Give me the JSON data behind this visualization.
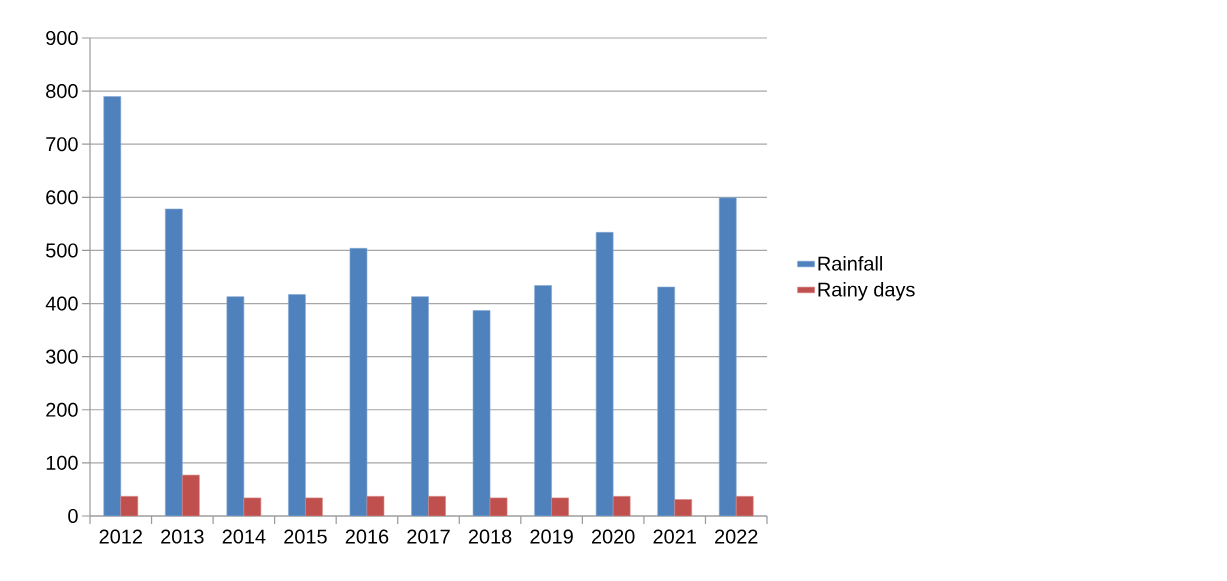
{
  "chart_data": {
    "type": "bar",
    "categories": [
      "2012",
      "2013",
      "2014",
      "2015",
      "2016",
      "2017",
      "2018",
      "2019",
      "2020",
      "2021",
      "2022"
    ],
    "series": [
      {
        "name": "Rainfall",
        "color": "#4f81bd",
        "values": [
          790,
          578,
          413,
          417,
          504,
          413,
          387,
          434,
          534,
          431,
          599
        ]
      },
      {
        "name": "Rainy days",
        "color": "#c0504d",
        "values": [
          37,
          77,
          34,
          34,
          37,
          37,
          34,
          34,
          37,
          31,
          37
        ]
      }
    ],
    "ylim": [
      0,
      900
    ],
    "yticks": [
      0,
      100,
      200,
      300,
      400,
      500,
      600,
      700,
      800,
      900
    ],
    "grid": "y",
    "legend": "right"
  }
}
